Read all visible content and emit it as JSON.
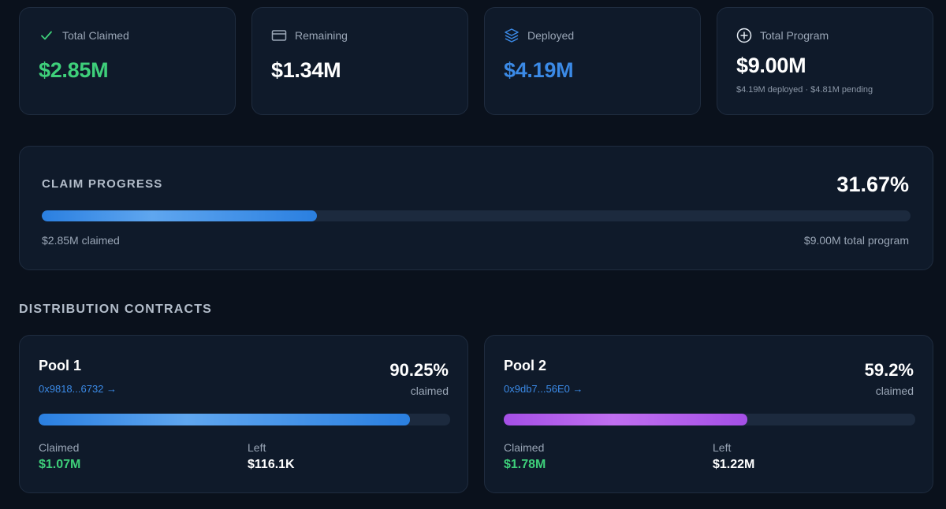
{
  "stats": [
    {
      "icon": "check-icon",
      "label": "Total Claimed",
      "value": "$2.85M",
      "color": "#3ecf7a",
      "sub": ""
    },
    {
      "icon": "card-icon",
      "label": "Remaining",
      "value": "$1.34M",
      "color": "#ffffff",
      "sub": ""
    },
    {
      "icon": "layers-icon",
      "label": "Deployed",
      "value": "$4.19M",
      "color": "#3b8ae6",
      "sub": ""
    },
    {
      "icon": "plus-circle-icon",
      "label": "Total Program",
      "value": "$9.00M",
      "color": "#ffffff",
      "sub": "$4.19M deployed · $4.81M pending"
    }
  ],
  "progress": {
    "title": "CLAIM PROGRESS",
    "percent_label": "31.67%",
    "fraction": 0.3167,
    "claimed_label": "$2.85M claimed",
    "total_label": "$9.00M total program"
  },
  "contracts": {
    "title": "DISTRIBUTION CONTRACTS",
    "pools": [
      {
        "name": "Pool 1",
        "address": "0x9818...6732 →",
        "percent_label": "90.25%",
        "fraction": 0.9025,
        "claimed_caption": "claimed",
        "claimed_key": "Claimed",
        "claimed_value": "$1.07M",
        "left_key": "Left",
        "left_value": "$116.1K",
        "bar_color": "blue"
      },
      {
        "name": "Pool 2",
        "address": "0x9db7...56E0 →",
        "percent_label": "59.2%",
        "fraction": 0.592,
        "claimed_caption": "claimed",
        "claimed_key": "Claimed",
        "claimed_value": "$1.78M",
        "left_key": "Left",
        "left_value": "$1.22M",
        "bar_color": "purple"
      }
    ]
  },
  "colors": {
    "accent_green": "#3ecf7a",
    "accent_blue": "#3b8ae6",
    "accent_purple": "#a44fe6"
  }
}
